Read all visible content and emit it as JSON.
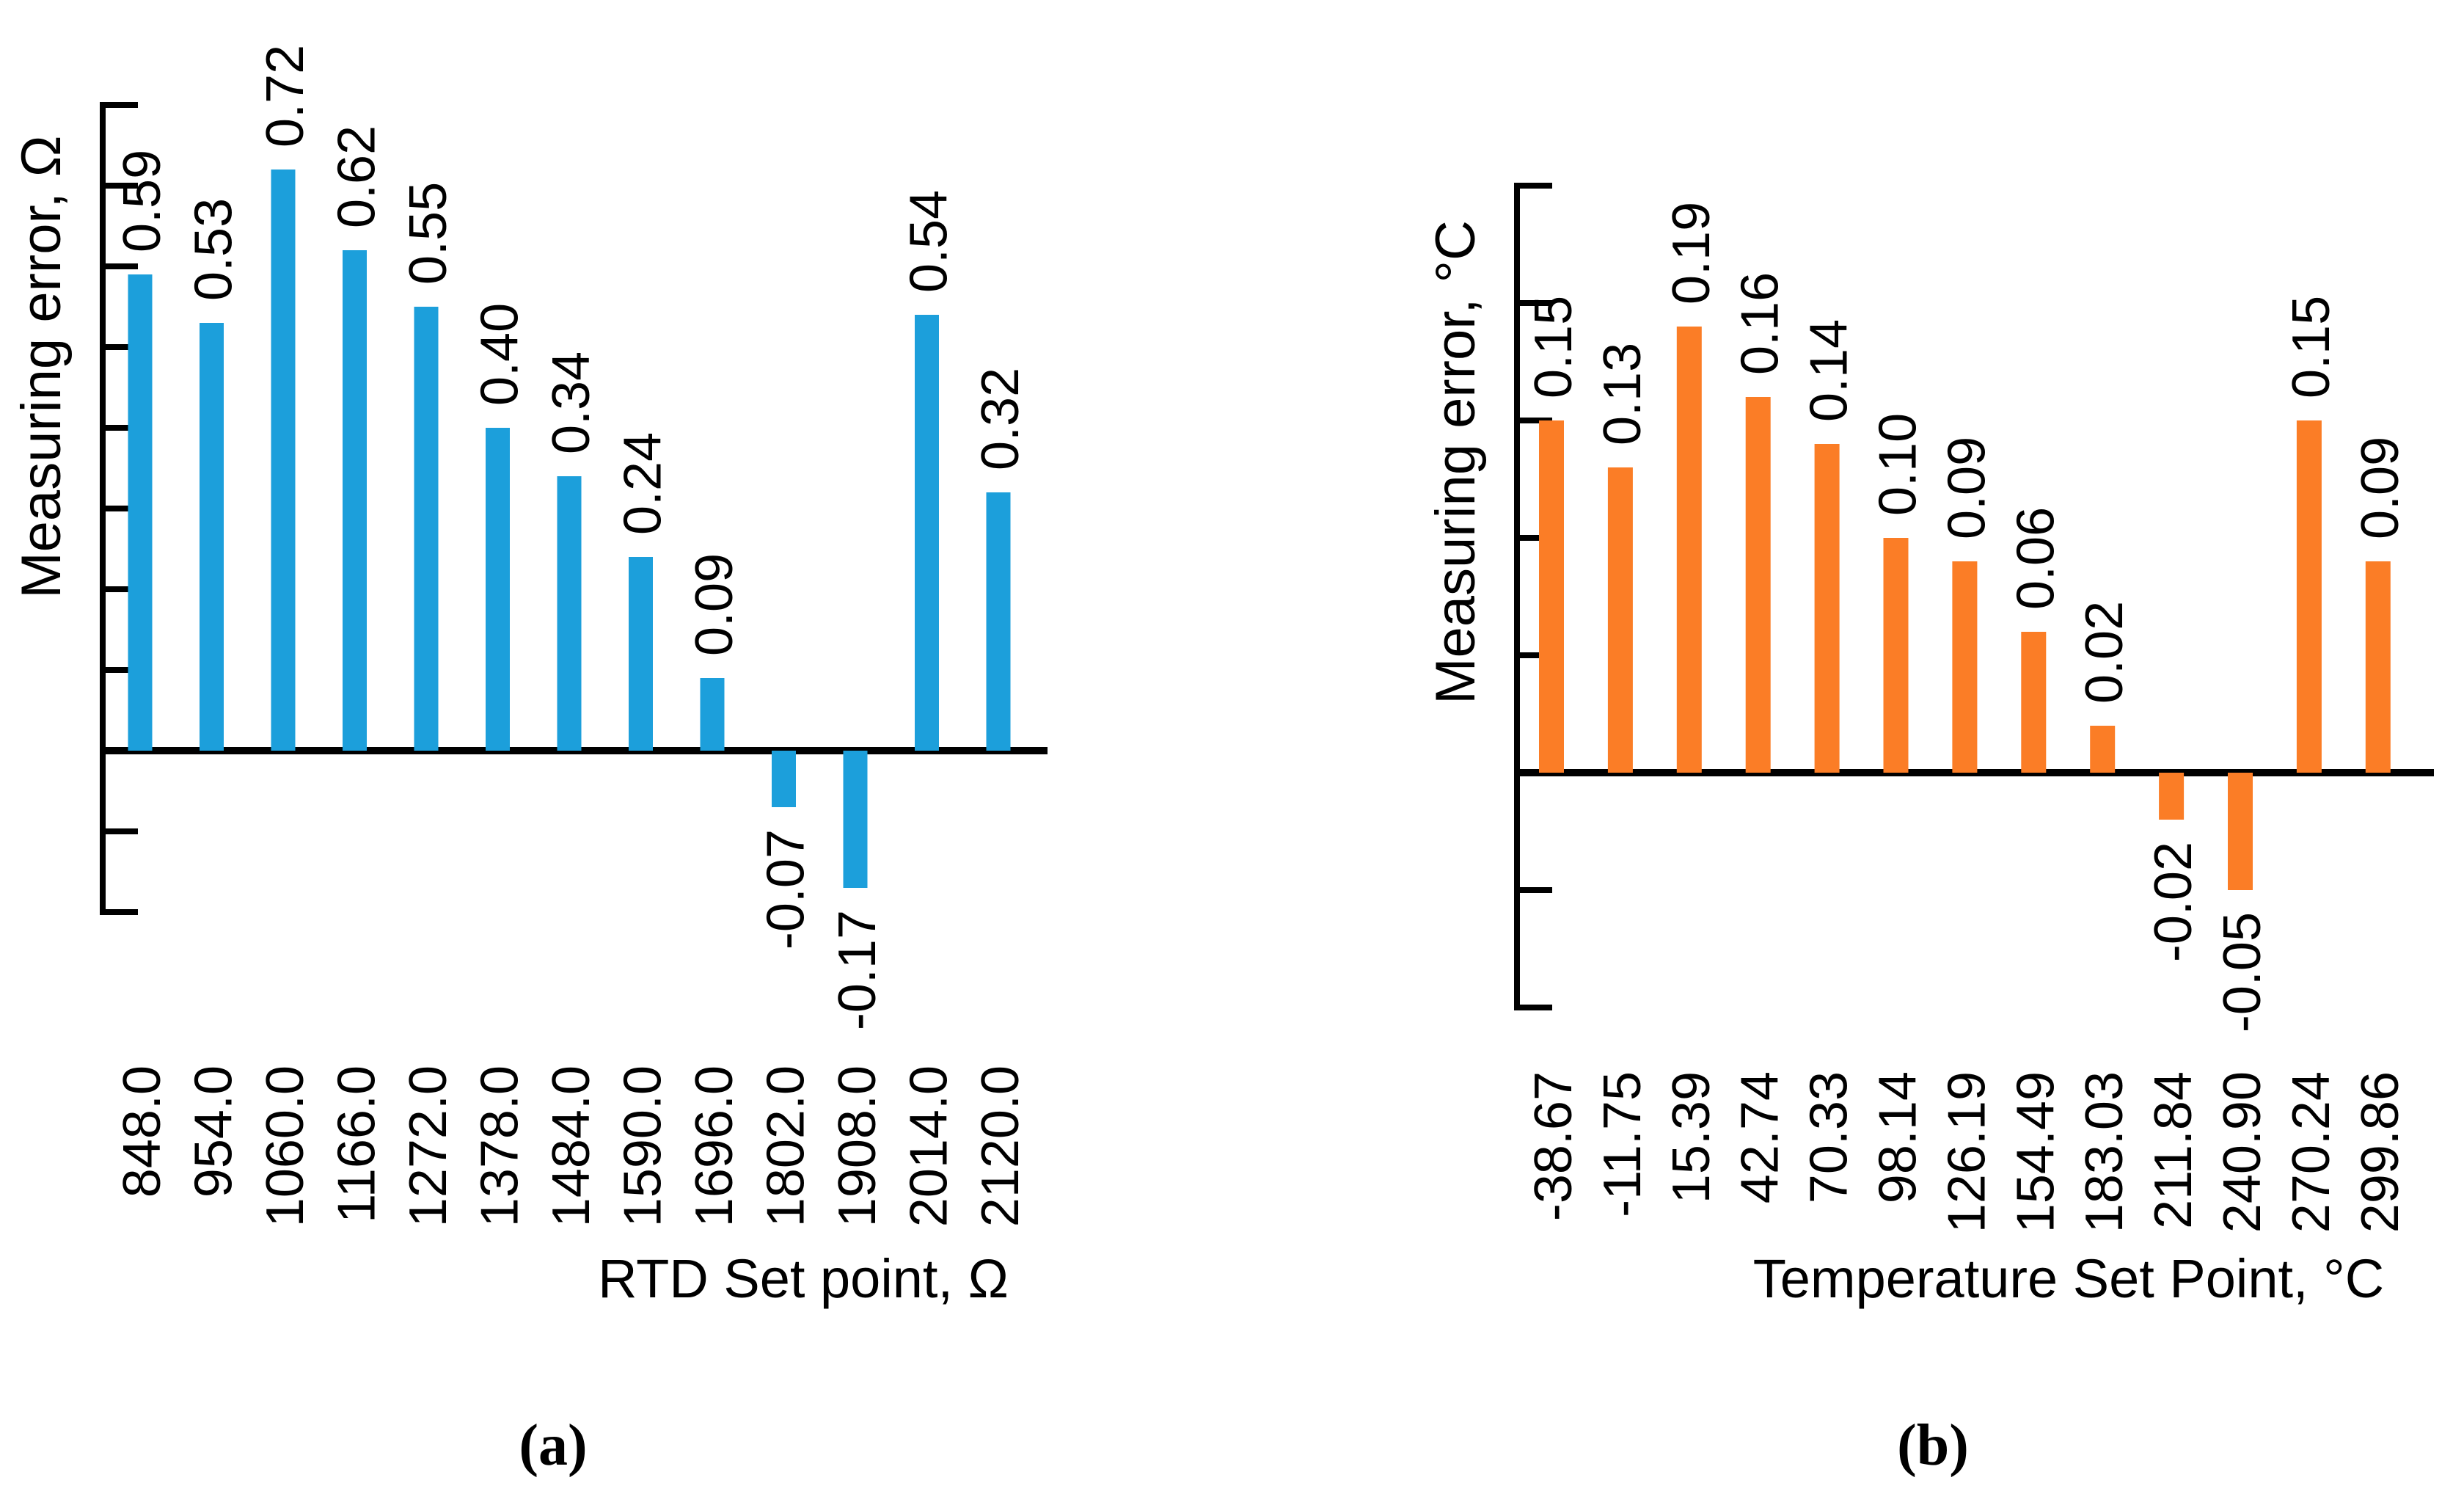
{
  "figure": {
    "background": "#ffffff",
    "text_color": "#000000",
    "caption_a": "(a)",
    "caption_b": "(b)"
  },
  "chart_data": [
    {
      "type": "bar",
      "panel": "a",
      "caption": "(a)",
      "title": "",
      "xlabel": "RTD Set point, Ω",
      "ylabel": "Measuring error, Ω",
      "bar_color": "#1C9FDB",
      "axis_color": "#000000",
      "categories": [
        "848.0",
        "954.0",
        "1060.0",
        "1166.0",
        "1272.0",
        "1378.0",
        "1484.0",
        "1590.0",
        "1696.0",
        "1802.0",
        "1908.0",
        "2014.0",
        "2120.0"
      ],
      "values": [
        0.59,
        0.53,
        0.72,
        0.62,
        0.55,
        0.4,
        0.34,
        0.24,
        0.09,
        -0.07,
        -0.17,
        0.54,
        0.32
      ],
      "data_labels": [
        "0.59",
        "0.53",
        "0.72",
        "0.62",
        "0.55",
        "0.40",
        "0.34",
        "0.24",
        "0.09",
        "-0.07",
        "-0.17",
        "0.54",
        "0.32"
      ],
      "ylim": [
        -0.2,
        0.8
      ],
      "ytick_step": 0.1,
      "ytick_labels_shown": false,
      "grid": false,
      "legend": "none",
      "label_rotation_deg": 90
    },
    {
      "type": "bar",
      "panel": "b",
      "caption": "(b)",
      "title": "",
      "xlabel": "Temperature Set Point, °C",
      "ylabel": "Measuring error, °C",
      "bar_color": "#FB7D26",
      "axis_color": "#000000",
      "categories": [
        "-38.67",
        "-11.75",
        "15.39",
        "42.74",
        "70.33",
        "98.14",
        "126.19",
        "154.49",
        "183.03",
        "211.84",
        "240.90",
        "270.24",
        "299.86"
      ],
      "values": [
        0.15,
        0.13,
        0.19,
        0.16,
        0.14,
        0.1,
        0.09,
        0.06,
        0.02,
        -0.02,
        -0.05,
        0.15,
        0.09
      ],
      "data_labels": [
        "0.15",
        "0.13",
        "0.19",
        "0.16",
        "0.14",
        "0.10",
        "0.09",
        "0.06",
        "0.02",
        "-0.02",
        "-0.05",
        "0.15",
        "0.09"
      ],
      "ylim": [
        -0.1,
        0.25
      ],
      "ytick_step": 0.05,
      "ytick_labels_shown": false,
      "grid": false,
      "legend": "none",
      "label_rotation_deg": 90
    }
  ]
}
